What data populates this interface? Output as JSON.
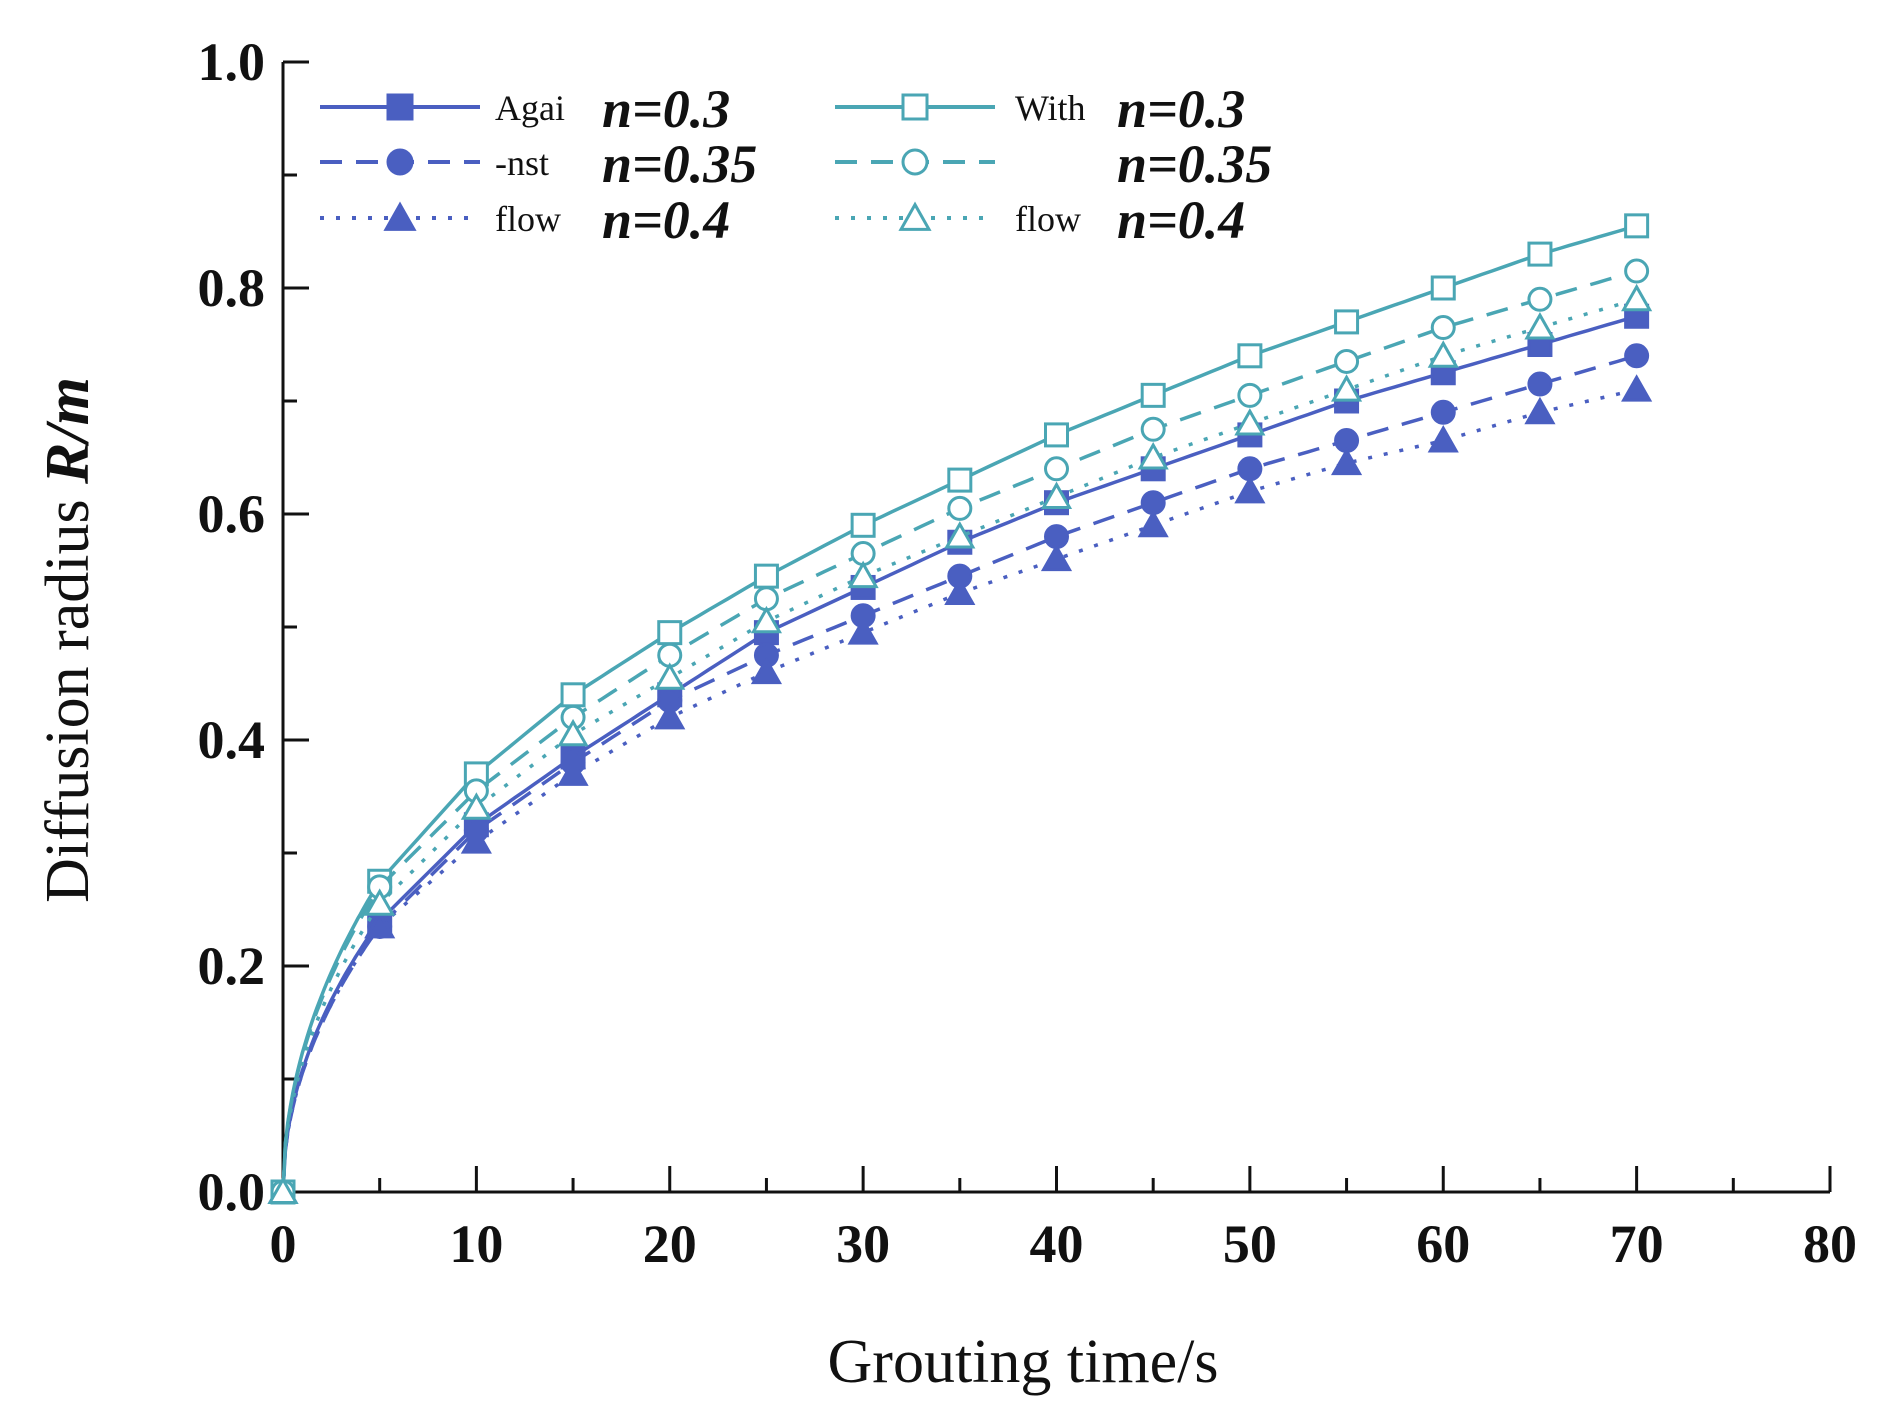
{
  "chart_data": {
    "type": "line",
    "title": "",
    "xlabel": "Grouting time/s",
    "ylabel": {
      "prefix": "Diffusion radius ",
      "emph": "R/m"
    },
    "xlim": [
      0,
      80
    ],
    "ylim": [
      0,
      1.0
    ],
    "x_ticks": [
      0,
      10,
      20,
      30,
      40,
      50,
      60,
      70,
      80
    ],
    "y_ticks": [
      0.0,
      0.2,
      0.4,
      0.6,
      0.8,
      1.0
    ],
    "y_tick_labels": [
      "0.0",
      "0.2",
      "0.4",
      "0.6",
      "0.8",
      "1.0"
    ],
    "grid": false,
    "legend_position": "top-left",
    "x": [
      0,
      5,
      10,
      15,
      20,
      25,
      30,
      35,
      40,
      45,
      50,
      55,
      60,
      65,
      70
    ],
    "legend_groups": [
      {
        "labels": [
          "Agai",
          "-nst",
          "flow"
        ]
      },
      {
        "labels": [
          "With",
          "",
          "flow"
        ]
      }
    ],
    "series": [
      {
        "name": "Against flow n=0.3",
        "legend_label": "Agai",
        "n_label": "n=0.3",
        "color": "#4a5fc1",
        "line": "solid",
        "marker": "square",
        "filled": true,
        "values": [
          0.0,
          0.24,
          0.325,
          0.385,
          0.44,
          0.495,
          0.535,
          0.575,
          0.61,
          0.64,
          0.67,
          0.7,
          0.725,
          0.75,
          0.775
        ]
      },
      {
        "name": "Against flow n=0.35",
        "legend_label": "-nst",
        "n_label": "n=0.35",
        "color": "#4a5fc1",
        "line": "dashed",
        "marker": "circle",
        "filled": true,
        "values": [
          0.0,
          0.235,
          0.32,
          0.38,
          0.435,
          0.475,
          0.51,
          0.545,
          0.58,
          0.61,
          0.64,
          0.665,
          0.69,
          0.715,
          0.74
        ]
      },
      {
        "name": "Against flow n=0.4",
        "legend_label": "flow",
        "n_label": "n=0.4",
        "color": "#4a5fc1",
        "line": "dotted",
        "marker": "triangle",
        "filled": true,
        "values": [
          0.0,
          0.235,
          0.31,
          0.37,
          0.42,
          0.46,
          0.495,
          0.53,
          0.56,
          0.59,
          0.62,
          0.645,
          0.665,
          0.69,
          0.71
        ]
      },
      {
        "name": "With flow n=0.3",
        "legend_label": "With",
        "n_label": "n=0.3",
        "color": "#4aa6b4",
        "line": "solid",
        "marker": "square",
        "filled": false,
        "values": [
          0.0,
          0.275,
          0.37,
          0.44,
          0.495,
          0.545,
          0.59,
          0.63,
          0.67,
          0.705,
          0.74,
          0.77,
          0.8,
          0.83,
          0.855
        ]
      },
      {
        "name": "With flow n=0.35",
        "legend_label": "",
        "n_label": "n=0.35",
        "color": "#4aa6b4",
        "line": "dashed",
        "marker": "circle",
        "filled": false,
        "values": [
          0.0,
          0.27,
          0.355,
          0.42,
          0.475,
          0.525,
          0.565,
          0.605,
          0.64,
          0.675,
          0.705,
          0.735,
          0.765,
          0.79,
          0.815
        ]
      },
      {
        "name": "With flow n=0.4",
        "legend_label": "flow",
        "n_label": "n=0.4",
        "color": "#4aa6b4",
        "line": "dotted",
        "marker": "triangle",
        "filled": false,
        "values": [
          0.0,
          0.255,
          0.34,
          0.405,
          0.455,
          0.505,
          0.545,
          0.58,
          0.615,
          0.65,
          0.68,
          0.71,
          0.74,
          0.765,
          0.79
        ]
      }
    ]
  }
}
